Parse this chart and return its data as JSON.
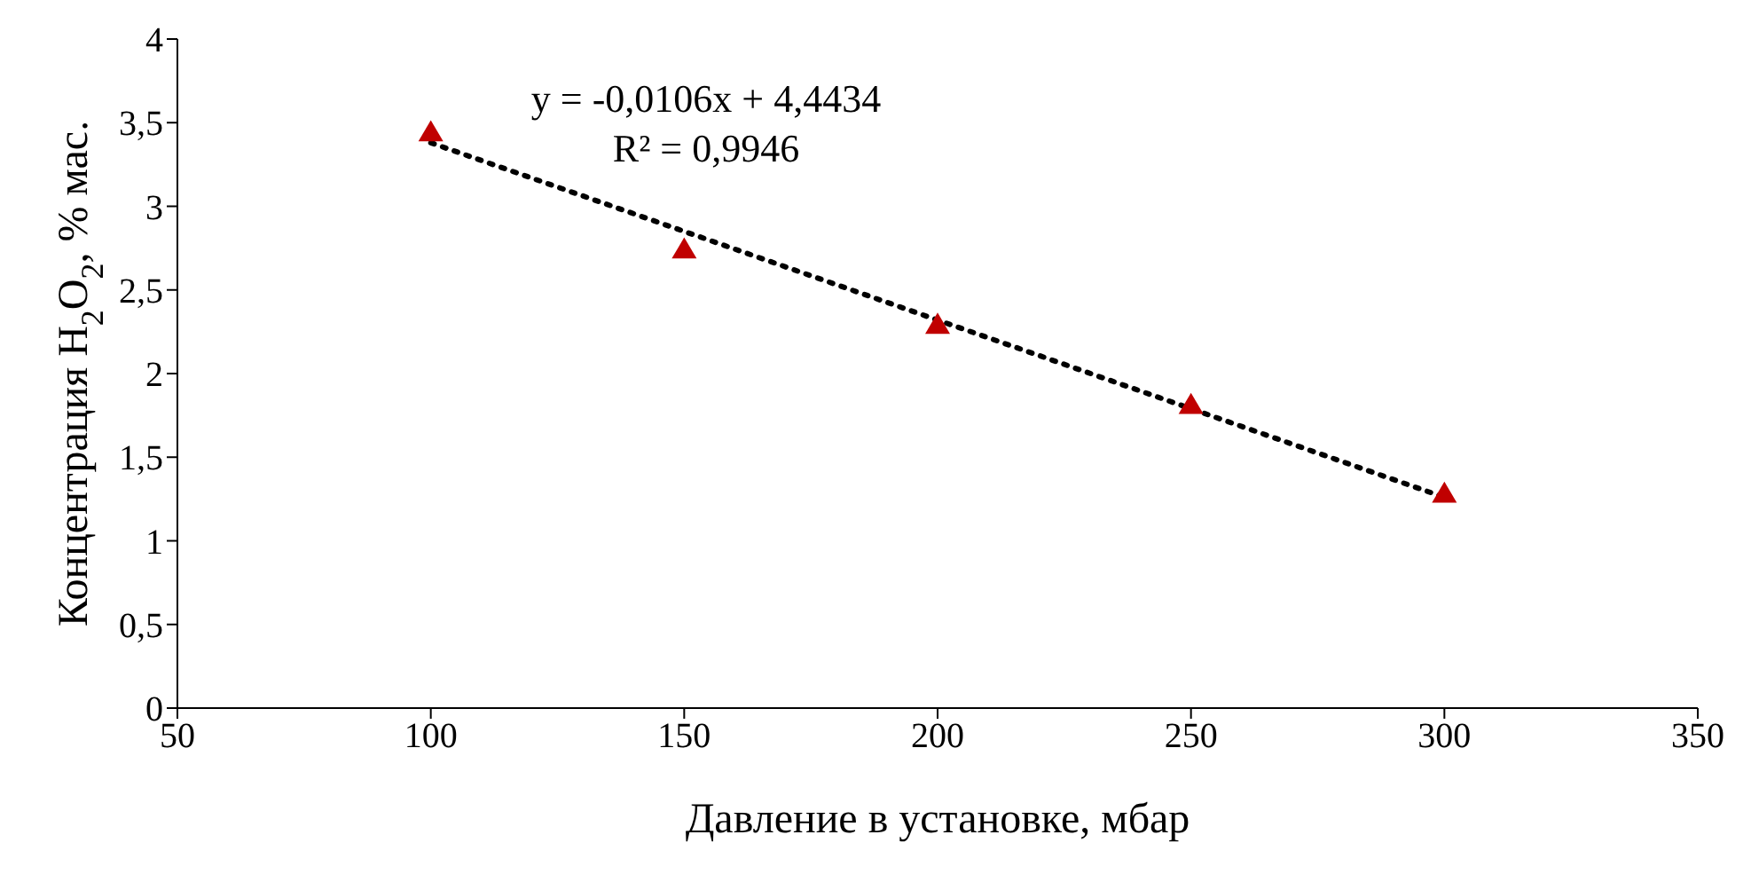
{
  "chart_data": {
    "type": "scatter",
    "xlabel": "Давление в установке, мбар",
    "ylabel": "Концентрация H$_{2}$O$_{2}$, % мас.",
    "annotations": [
      "y = -0,0106x + 4,4434",
      "R² = 0,9946"
    ],
    "series": [
      {
        "color": "#c00000",
        "marker": "triangle",
        "x": [
          100,
          150,
          200,
          250,
          300
        ],
        "values": [
          3.44,
          2.74,
          2.29,
          1.81,
          1.28
        ]
      },
      {
        "type": "line",
        "color": "#000000",
        "line_style": "dotted",
        "marker": "none",
        "x": [
          100,
          300
        ],
        "values": [
          3.38,
          1.26
        ]
      }
    ],
    "xlim": [
      50,
      350
    ],
    "xticks": [
      50,
      100,
      150,
      200,
      250,
      300,
      350
    ],
    "ylim": [
      0,
      4
    ],
    "yticks": [
      0,
      {
        "value": 0.5,
        "label": "0,5"
      },
      1,
      {
        "value": 1.5,
        "label": "1,5"
      },
      2,
      {
        "value": 2.5,
        "label": "2,5"
      },
      3,
      {
        "value": 3.5,
        "label": "3,5"
      },
      4
    ],
    "grid": false,
    "legend": false
  }
}
